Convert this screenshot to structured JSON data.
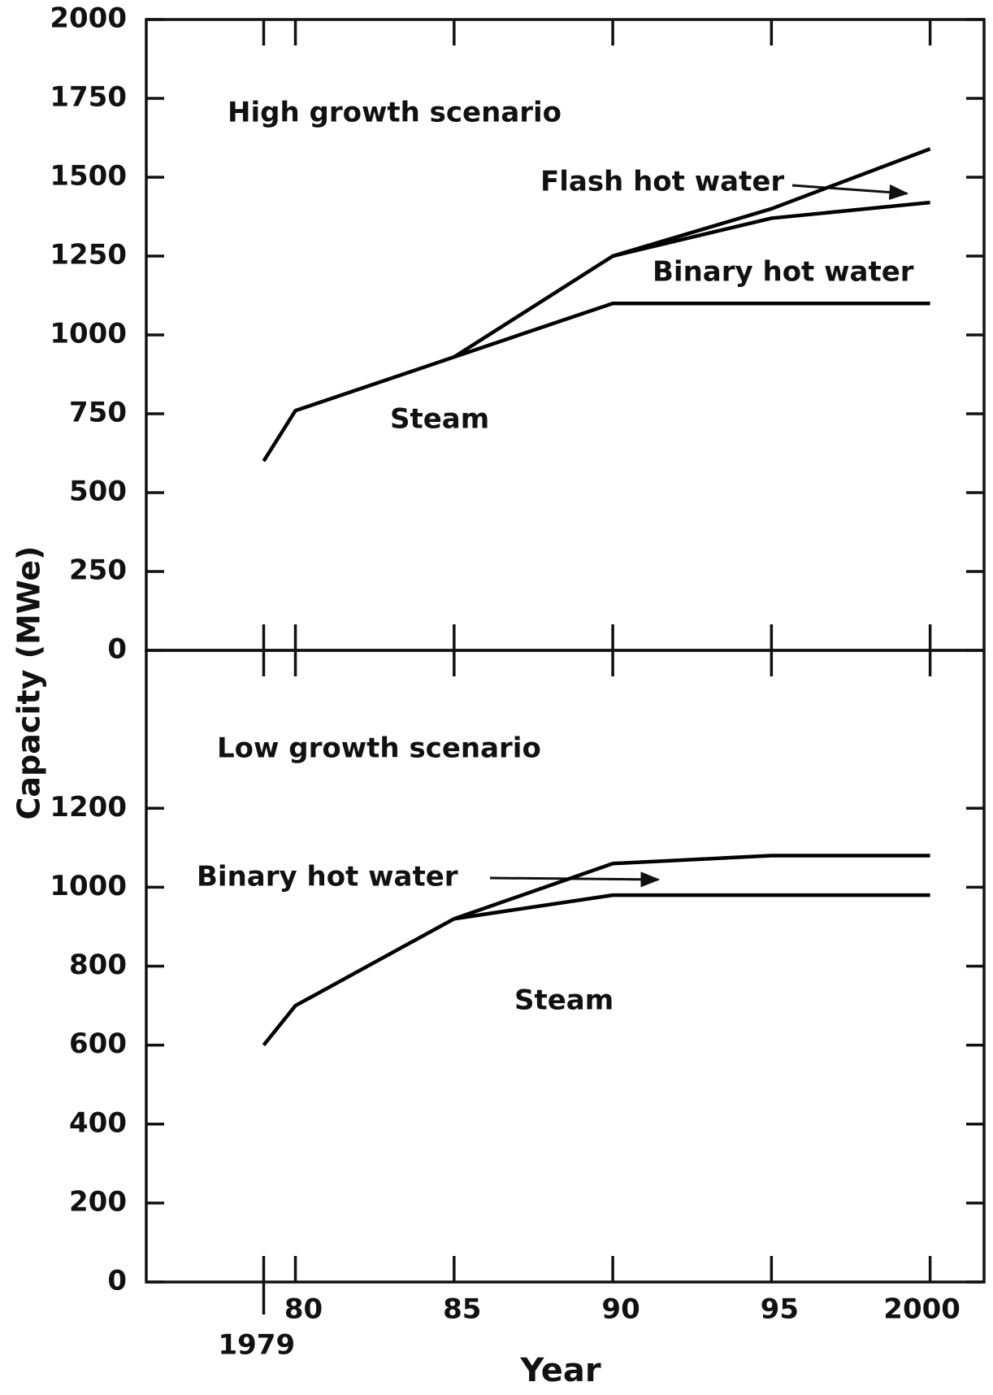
{
  "ylabel": "Capacity (MWe)",
  "xlabel": "Year",
  "chart_data": [
    {
      "type": "line",
      "stacked": true,
      "title": "High growth scenario",
      "x": [
        1979,
        1980,
        1985,
        1990,
        1995,
        2000
      ],
      "series": [
        {
          "name": "Steam",
          "color": "#000000",
          "values": [
            600,
            760,
            930,
            1100,
            1100,
            1100
          ]
        },
        {
          "name": "Binary hot water",
          "color": "#000000",
          "values": [
            null,
            null,
            0,
            150,
            270,
            320
          ]
        },
        {
          "name": "Flash hot water",
          "color": "#000000",
          "values": [
            null,
            null,
            null,
            0,
            30,
            170
          ]
        }
      ],
      "xlim": [
        1975.3,
        2001.7
      ],
      "xticks": [
        1979,
        1980,
        1985,
        1990,
        1995,
        2000
      ],
      "ylim": [
        0,
        2000
      ],
      "yticks": [
        0,
        250,
        500,
        750,
        1000,
        1250,
        1500,
        1750,
        2000
      ]
    },
    {
      "type": "line",
      "stacked": true,
      "title": "Low growth scenario",
      "x": [
        1979,
        1980,
        1985,
        1990,
        1995,
        2000
      ],
      "series": [
        {
          "name": "Steam",
          "color": "#000000",
          "values": [
            600,
            700,
            920,
            980,
            980,
            980
          ]
        },
        {
          "name": "Binary hot water",
          "color": "#000000",
          "values": [
            null,
            null,
            0,
            80,
            100,
            100
          ]
        }
      ],
      "xlim": [
        1975.3,
        2001.7
      ],
      "xticks": [
        1979,
        {
          "value": 1980,
          "label": "80"
        },
        {
          "value": 1985,
          "label": "85"
        },
        {
          "value": 1990,
          "label": "90"
        },
        {
          "value": 1995,
          "label": "95"
        },
        2000
      ],
      "ylim": [
        0,
        1600
      ],
      "yticks": [
        0,
        200,
        400,
        600,
        800,
        1000,
        1200
      ]
    }
  ]
}
